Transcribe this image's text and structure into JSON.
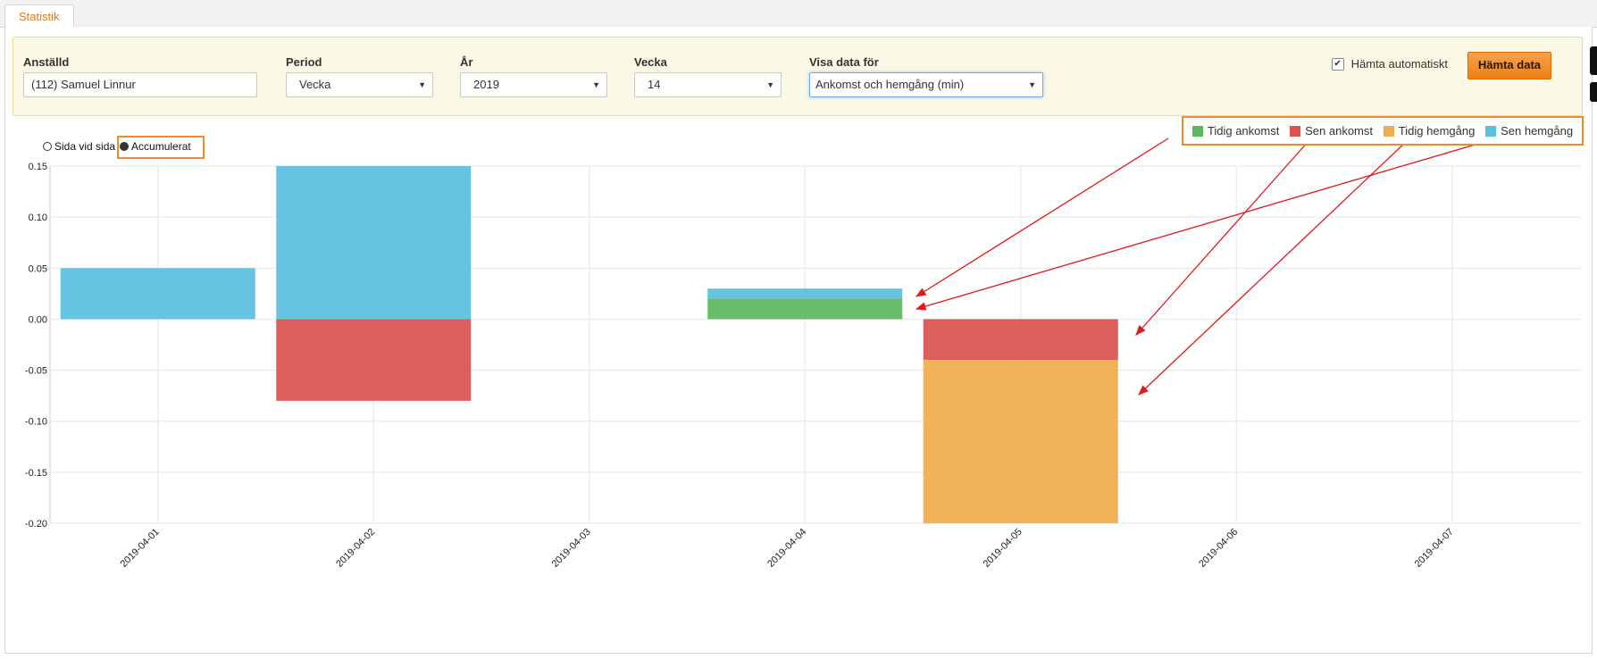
{
  "tab": {
    "label": "Statistik"
  },
  "filters": {
    "employee": {
      "label": "Anställd",
      "value": "(112) Samuel Linnur"
    },
    "period": {
      "label": "Period",
      "value": "Vecka"
    },
    "year": {
      "label": "År",
      "value": "2019"
    },
    "week": {
      "label": "Vecka",
      "value": "14"
    },
    "show_data": {
      "label": "Visa data för",
      "value": "Ankomst och hemgång (min)"
    },
    "auto_fetch": {
      "label": "Hämta automatiskt",
      "checked": true
    },
    "fetch_button": "Hämta data"
  },
  "mode": {
    "side_by_side": "Sida vid sida",
    "accumulated": "Accumulerat",
    "selected": "accumulated"
  },
  "chart_data": {
    "type": "bar",
    "stacked": true,
    "categories": [
      "2019-04-01",
      "2019-04-02",
      "2019-04-03",
      "2019-04-04",
      "2019-04-05",
      "2019-04-06",
      "2019-04-07"
    ],
    "series": [
      {
        "name": "Tidig ankomst",
        "color": "#5cb85c",
        "values": [
          0,
          0,
          0,
          0.02,
          0,
          0,
          0
        ]
      },
      {
        "name": "Sen ankomst",
        "color": "#d9534f",
        "values": [
          0,
          -0.08,
          0,
          0,
          -0.04,
          0,
          0
        ]
      },
      {
        "name": "Tidig hemgång",
        "color": "#f0ad4e",
        "values": [
          0,
          0,
          0,
          0,
          -0.16,
          0,
          0
        ]
      },
      {
        "name": "Sen hemgång",
        "color": "#5bc0de",
        "values": [
          0.05,
          0.15,
          0,
          0.01,
          0,
          0,
          0
        ]
      }
    ],
    "yticks": [
      "0.15",
      "0.10",
      "0.05",
      "0.00",
      "-0.05",
      "-0.10",
      "-0.15",
      "-0.20"
    ],
    "ylim": [
      -0.2,
      0.15
    ],
    "grid": true,
    "legend_position": "top-right"
  }
}
